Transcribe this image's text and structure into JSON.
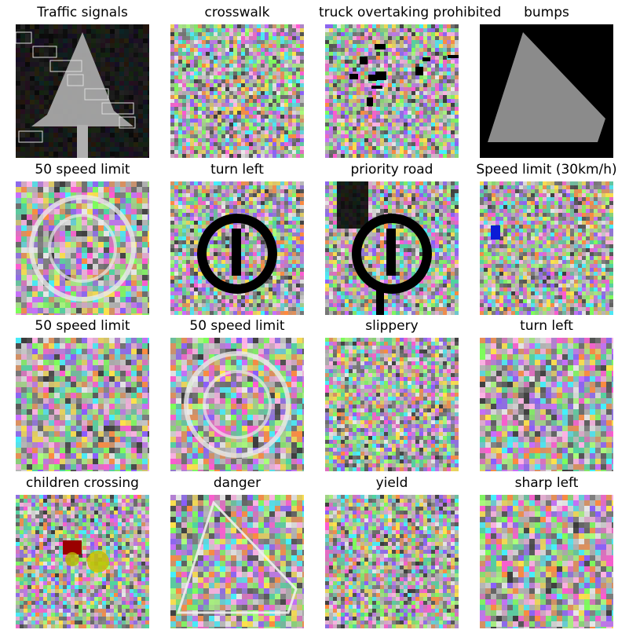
{
  "grid": {
    "tiles": [
      {
        "label": "Traffic signals",
        "mark": "tree",
        "noise": "mid"
      },
      {
        "label": "crosswalk",
        "mark": "none",
        "noise": "fine"
      },
      {
        "label": "truck overtaking prohibited",
        "mark": "specks",
        "noise": "fine"
      },
      {
        "label": "bumps",
        "mark": "triangle",
        "noise": "fine"
      },
      {
        "label": "50 speed limit",
        "mark": "circle-light",
        "noise": "coarse"
      },
      {
        "label": "turn left",
        "mark": "circle-dark",
        "noise": "fine"
      },
      {
        "label": "priority road",
        "mark": "circle-dark-50",
        "noise": "fine"
      },
      {
        "label": "Speed limit (30km/h)",
        "mark": "blue-spot",
        "noise": "fine"
      },
      {
        "label": "50 speed limit",
        "mark": "none",
        "noise": "coarse"
      },
      {
        "label": "50 speed limit",
        "mark": "circle-light",
        "noise": "coarse"
      },
      {
        "label": "slippery",
        "mark": "none",
        "noise": "fine"
      },
      {
        "label": "turn left",
        "mark": "none",
        "noise": "coarse"
      },
      {
        "label": "children crossing",
        "mark": "red-yellow",
        "noise": "fine"
      },
      {
        "label": "danger",
        "mark": "triangle-light",
        "noise": "coarse"
      },
      {
        "label": "yield",
        "mark": "none",
        "noise": "fine"
      },
      {
        "label": "sharp left",
        "mark": "none",
        "noise": "coarse"
      }
    ]
  }
}
